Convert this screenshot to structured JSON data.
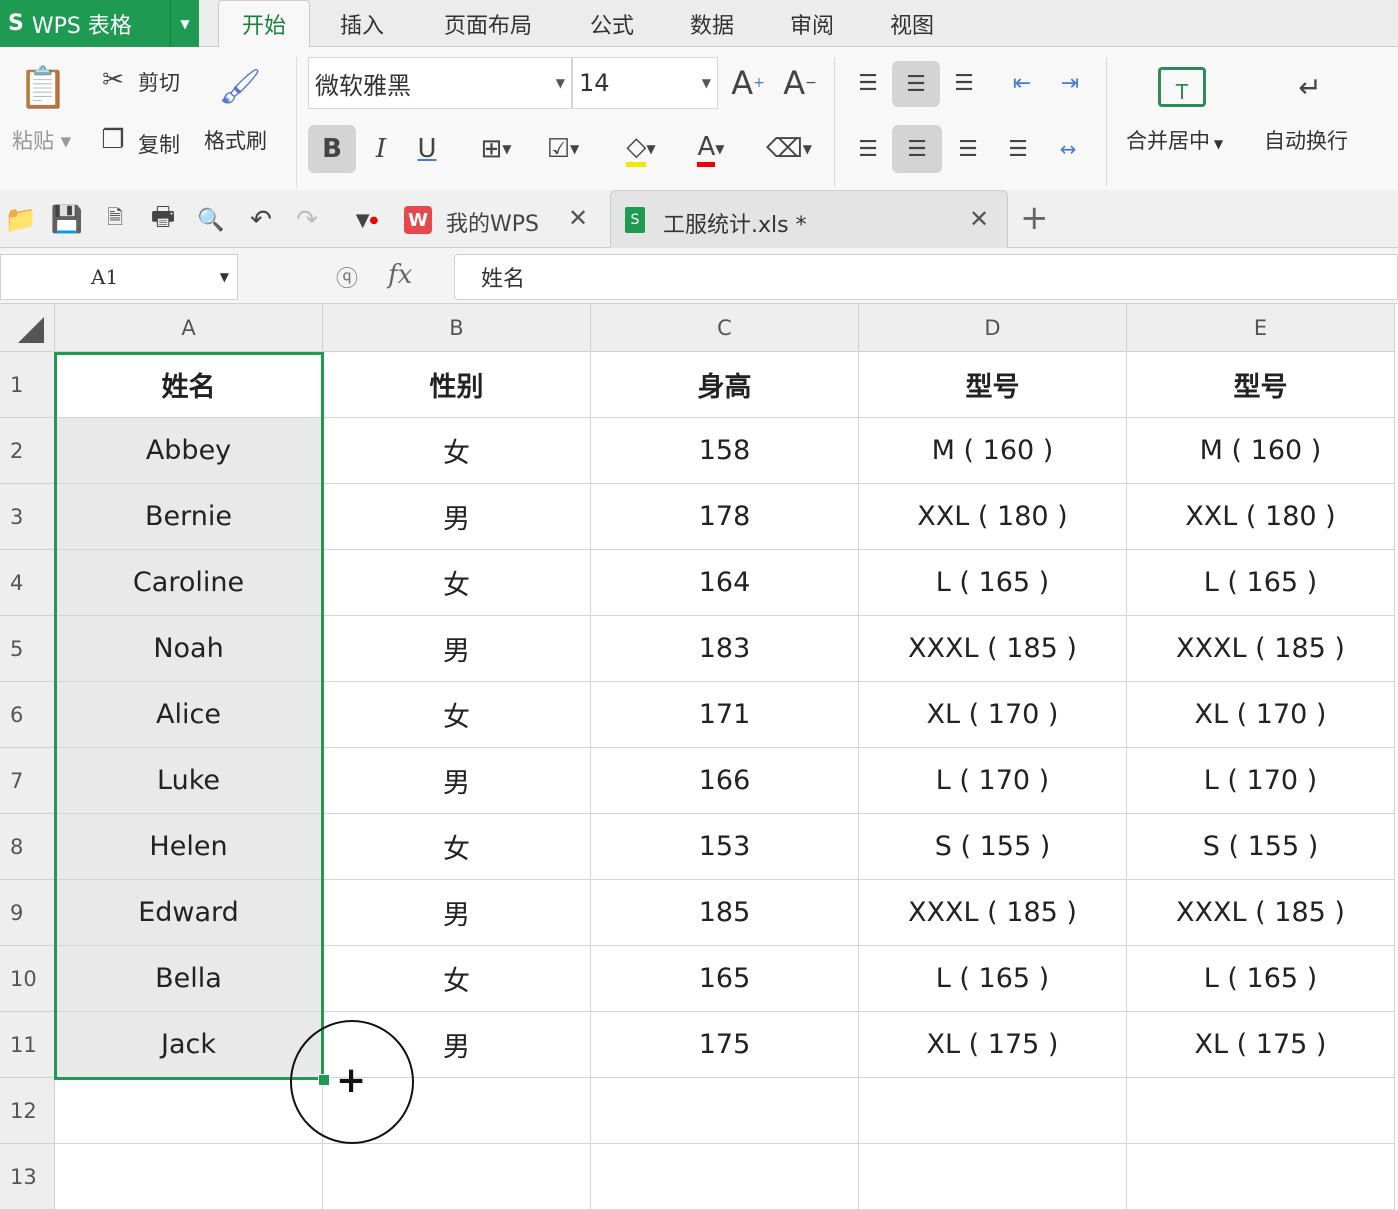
{
  "app": {
    "logo": "WPS 表格",
    "brand_color": "#1e9a52"
  },
  "menu": {
    "tabs": [
      "开始",
      "插入",
      "页面布局",
      "公式",
      "数据",
      "审阅",
      "视图"
    ],
    "active": "开始"
  },
  "ribbon": {
    "paste": "粘贴",
    "cut": "剪切",
    "copy": "复制",
    "format_painter": "格式刷",
    "font_name": "微软雅黑",
    "font_size": "14",
    "merge_center": "合并居中",
    "wrap_text": "自动换行"
  },
  "doc_tabs": [
    {
      "label": "我的WPS"
    },
    {
      "label": "工服统计.xls *",
      "active": true
    }
  ],
  "formula": {
    "name_box": "A1",
    "fx": "fx",
    "value": "姓名"
  },
  "columns": [
    "A",
    "B",
    "C",
    "D",
    "E"
  ],
  "rows": [
    [
      "姓名",
      "性别",
      "身高",
      "型号",
      "型号"
    ],
    [
      "Abbey",
      "女",
      "158",
      "M ( 160 )",
      "M ( 160 )"
    ],
    [
      "Bernie",
      "男",
      "178",
      "XXL ( 180 )",
      "XXL ( 180 )"
    ],
    [
      "Caroline",
      "女",
      "164",
      "L ( 165 )",
      "L ( 165 )"
    ],
    [
      "Noah",
      "男",
      "183",
      "XXXL ( 185 )",
      "XXXL ( 185 )"
    ],
    [
      "Alice",
      "女",
      "171",
      "XL ( 170 )",
      "XL ( 170 )"
    ],
    [
      "Luke",
      "男",
      "166",
      "L ( 170 )",
      "L ( 170 )"
    ],
    [
      "Helen",
      "女",
      "153",
      "S ( 155 )",
      "S ( 155 )"
    ],
    [
      "Edward",
      "男",
      "185",
      "XXXL ( 185 )",
      "XXXL ( 185 )"
    ],
    [
      "Bella",
      "女",
      "165",
      "L ( 165 )",
      "L ( 165 )"
    ],
    [
      "Jack",
      "男",
      "175",
      "XL ( 175 )",
      "XL ( 175 )"
    ],
    [
      "",
      "",
      "",
      "",
      ""
    ],
    [
      "",
      "",
      "",
      "",
      ""
    ]
  ],
  "row_numbers": [
    "1",
    "2",
    "3",
    "4",
    "5",
    "6",
    "7",
    "8",
    "9",
    "10",
    "11",
    "12",
    "13"
  ],
  "selection": {
    "range": "A1:A11",
    "color": "#1e9a52"
  }
}
